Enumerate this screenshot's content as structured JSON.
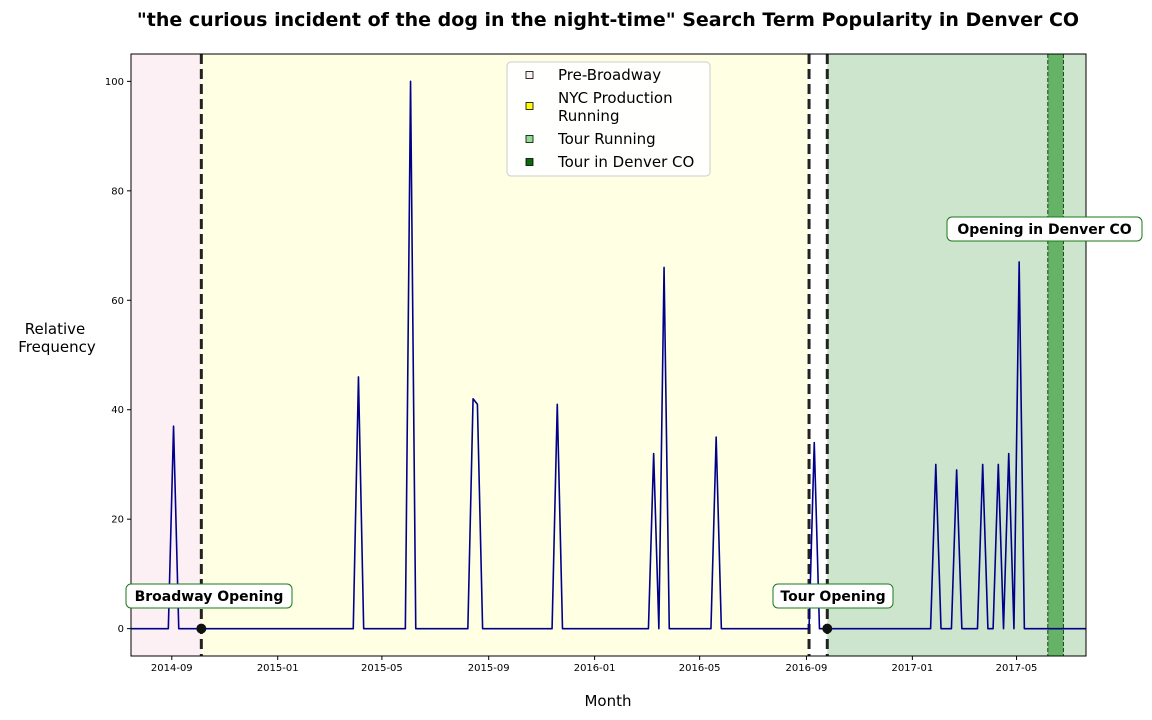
{
  "chart_data": {
    "type": "line",
    "title": "\"the curious incident of the dog in the night-time\" Search Term Popularity in Denver CO",
    "xlabel": "Month",
    "ylabel_lines": [
      "Relative",
      "Frequency"
    ],
    "xlim": [
      "2014-07-16",
      "2017-07-20"
    ],
    "ylim": [
      -5,
      105
    ],
    "yticks": [
      0,
      20,
      40,
      60,
      80,
      100
    ],
    "xticks": [
      "2014-09",
      "2015-01",
      "2015-05",
      "2015-09",
      "2016-01",
      "2016-05",
      "2016-09",
      "2017-01",
      "2017-05"
    ],
    "grid": false,
    "colors": {
      "line": "#00008b",
      "pre_broadway": "#fdf0f4",
      "nyc_running": "#ffffe3",
      "tour_running": "#cde5cd",
      "tour_in_denver": "#66b266",
      "event_line": "#222222"
    },
    "regions": [
      {
        "name": "Pre-Broadway",
        "start": "2014-07-16",
        "end": "2014-10-05",
        "color": "#fdf0f4"
      },
      {
        "name": "NYC Production Running",
        "start": "2014-10-05",
        "end": "2016-09-04",
        "color": "#ffffe3"
      },
      {
        "name": "Tour Running",
        "start": "2016-09-25",
        "end": "2017-07-20",
        "color": "#cde5cd"
      },
      {
        "name": "Tour in Denver CO",
        "start": "2017-06-06",
        "end": "2017-06-24",
        "color": "#66b266"
      }
    ],
    "event_lines": [
      "2014-10-05",
      "2016-09-04",
      "2016-09-25"
    ],
    "event_points": [
      {
        "x": "2014-10-05",
        "y": 0
      },
      {
        "x": "2016-09-25",
        "y": 0
      }
    ],
    "annotations": [
      {
        "text": "Broadway Opening",
        "x": "2014-10-05",
        "y": 6
      },
      {
        "text": "Tour Opening",
        "x": "2016-09-25",
        "y": 6
      },
      {
        "text": "Opening in Denver CO",
        "x": "2017-06-06",
        "y": 73
      }
    ],
    "legend": {
      "placement": "top-center",
      "entries": [
        {
          "lines": [
            "Pre-Broadway"
          ],
          "color": "#fdf0f4"
        },
        {
          "lines": [
            "NYC Production",
            "Running"
          ],
          "color": "#ffff00"
        },
        {
          "lines": [
            "Tour Running"
          ],
          "color": "#8fdc8f"
        },
        {
          "lines": [
            "Tour in Denver CO"
          ],
          "color": "#0a6b0a"
        }
      ]
    },
    "series": [
      {
        "points": [
          [
            "2014-07-16",
            0
          ],
          [
            "2014-08-28",
            0
          ],
          [
            "2014-09-03",
            37
          ],
          [
            "2014-09-09",
            0
          ],
          [
            "2015-03-29",
            0
          ],
          [
            "2015-04-04",
            46
          ],
          [
            "2015-04-10",
            0
          ],
          [
            "2015-05-28",
            0
          ],
          [
            "2015-06-03",
            100
          ],
          [
            "2015-06-09",
            0
          ],
          [
            "2015-08-08",
            0
          ],
          [
            "2015-08-14",
            42
          ],
          [
            "2015-08-19",
            41
          ],
          [
            "2015-08-25",
            0
          ],
          [
            "2015-11-13",
            0
          ],
          [
            "2015-11-19",
            41
          ],
          [
            "2015-11-25",
            0
          ],
          [
            "2016-03-03",
            0
          ],
          [
            "2016-03-09",
            32
          ],
          [
            "2016-03-15",
            0
          ],
          [
            "2016-03-21",
            66
          ],
          [
            "2016-03-27",
            0
          ],
          [
            "2016-05-14",
            0
          ],
          [
            "2016-05-20",
            35
          ],
          [
            "2016-05-26",
            0
          ],
          [
            "2016-09-04",
            0
          ],
          [
            "2016-09-10",
            34
          ],
          [
            "2016-09-16",
            0
          ],
          [
            "2017-01-22",
            0
          ],
          [
            "2017-01-28",
            30
          ],
          [
            "2017-02-03",
            0
          ],
          [
            "2017-02-15",
            0
          ],
          [
            "2017-02-21",
            29
          ],
          [
            "2017-02-27",
            0
          ],
          [
            "2017-03-17",
            0
          ],
          [
            "2017-03-23",
            30
          ],
          [
            "2017-03-29",
            0
          ],
          [
            "2017-04-04",
            0
          ],
          [
            "2017-04-10",
            30
          ],
          [
            "2017-04-16",
            0
          ],
          [
            "2017-04-22",
            32
          ],
          [
            "2017-04-28",
            0
          ],
          [
            "2017-05-04",
            67
          ],
          [
            "2017-05-10",
            0
          ],
          [
            "2017-07-20",
            0
          ]
        ]
      }
    ]
  }
}
